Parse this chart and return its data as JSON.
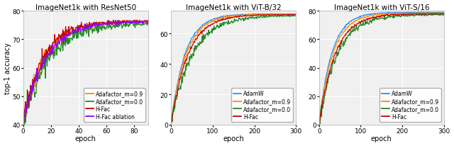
{
  "subplot1": {
    "title": "ImageNet1k with ResNet50",
    "xlabel": "epoch",
    "ylabel": "top-1 accuracy",
    "xlim": [
      0,
      90
    ],
    "ylim": [
      40,
      80
    ],
    "yticks": [
      40,
      50,
      60,
      70,
      80
    ],
    "xticks": [
      0,
      20,
      40,
      60,
      80
    ],
    "series": [
      {
        "label": "Adafactor_m=0.9",
        "color": "#FF8C00",
        "end_val": 76.2,
        "start_val": 41.0,
        "noise": 1.8,
        "speed": 0.065,
        "noise_decay": 0.025
      },
      {
        "label": "Adafactor_m=0.0",
        "color": "#228B22",
        "end_val": 75.8,
        "start_val": 41.0,
        "noise": 2.2,
        "speed": 0.055,
        "noise_decay": 0.02
      },
      {
        "label": "H-Fac",
        "color": "#CC0000",
        "end_val": 76.5,
        "start_val": 41.0,
        "noise": 1.8,
        "speed": 0.068,
        "noise_decay": 0.025
      },
      {
        "label": "H-Fac ablation",
        "color": "#8B00FF",
        "end_val": 76.2,
        "start_val": 41.0,
        "noise": 1.2,
        "speed": 0.062,
        "noise_decay": 0.022
      }
    ],
    "max_epoch": 90,
    "n_points": 270
  },
  "subplot2": {
    "title": "ImageNet1k with ViT-B/32",
    "xlabel": "epoch",
    "ylabel": "",
    "xlim": [
      0,
      300
    ],
    "ylim": [
      0,
      75
    ],
    "yticks": [
      0,
      20,
      40,
      60
    ],
    "xticks": [
      0,
      100,
      200,
      300
    ],
    "series": [
      {
        "label": "AdamW",
        "color": "#1E90FF",
        "end_val": 73.0,
        "start_val": 0.5,
        "noise": 0.6,
        "speed": 0.03,
        "noise_decay": 0.01
      },
      {
        "label": "Adafactor_m=0.9",
        "color": "#FF8C00",
        "end_val": 72.8,
        "start_val": 0.5,
        "noise": 0.9,
        "speed": 0.028,
        "noise_decay": 0.01
      },
      {
        "label": "Adafactor_m=0.0",
        "color": "#228B22",
        "end_val": 72.0,
        "start_val": 0.5,
        "noise": 2.0,
        "speed": 0.02,
        "noise_decay": 0.007
      },
      {
        "label": "H-Fac",
        "color": "#CC0000",
        "end_val": 72.5,
        "start_val": 0.5,
        "noise": 1.0,
        "speed": 0.025,
        "noise_decay": 0.009
      }
    ],
    "max_epoch": 300,
    "n_points": 300
  },
  "subplot3": {
    "title": "ImageNet1k with ViT-S/16",
    "xlabel": "epoch",
    "ylabel": "",
    "xlim": [
      0,
      300
    ],
    "ylim": [
      0,
      80
    ],
    "yticks": [
      0,
      20,
      40,
      60,
      80
    ],
    "xticks": [
      0,
      100,
      200,
      300
    ],
    "series": [
      {
        "label": "AdamW",
        "color": "#1E90FF",
        "end_val": 79.0,
        "start_val": 0.5,
        "noise": 0.5,
        "speed": 0.033,
        "noise_decay": 0.009
      },
      {
        "label": "Adafactor_m=0.9",
        "color": "#FF8C00",
        "end_val": 78.5,
        "start_val": 0.5,
        "noise": 0.8,
        "speed": 0.03,
        "noise_decay": 0.009
      },
      {
        "label": "Adafactor_m=0.0",
        "color": "#228B22",
        "end_val": 77.5,
        "start_val": 0.5,
        "noise": 2.0,
        "speed": 0.023,
        "noise_decay": 0.007
      },
      {
        "label": "H-Fac",
        "color": "#CC0000",
        "end_val": 78.0,
        "start_val": 0.5,
        "noise": 0.9,
        "speed": 0.026,
        "noise_decay": 0.008
      }
    ],
    "max_epoch": 300,
    "n_points": 300
  },
  "fig_bgcolor": "#ffffff",
  "ax_bgcolor": "#f0f0f0",
  "grid_color": "#ffffff",
  "linewidth": 0.9,
  "legend_fontsize": 5.5,
  "title_fontsize": 7.5,
  "tick_fontsize": 6.5,
  "label_fontsize": 7.0
}
